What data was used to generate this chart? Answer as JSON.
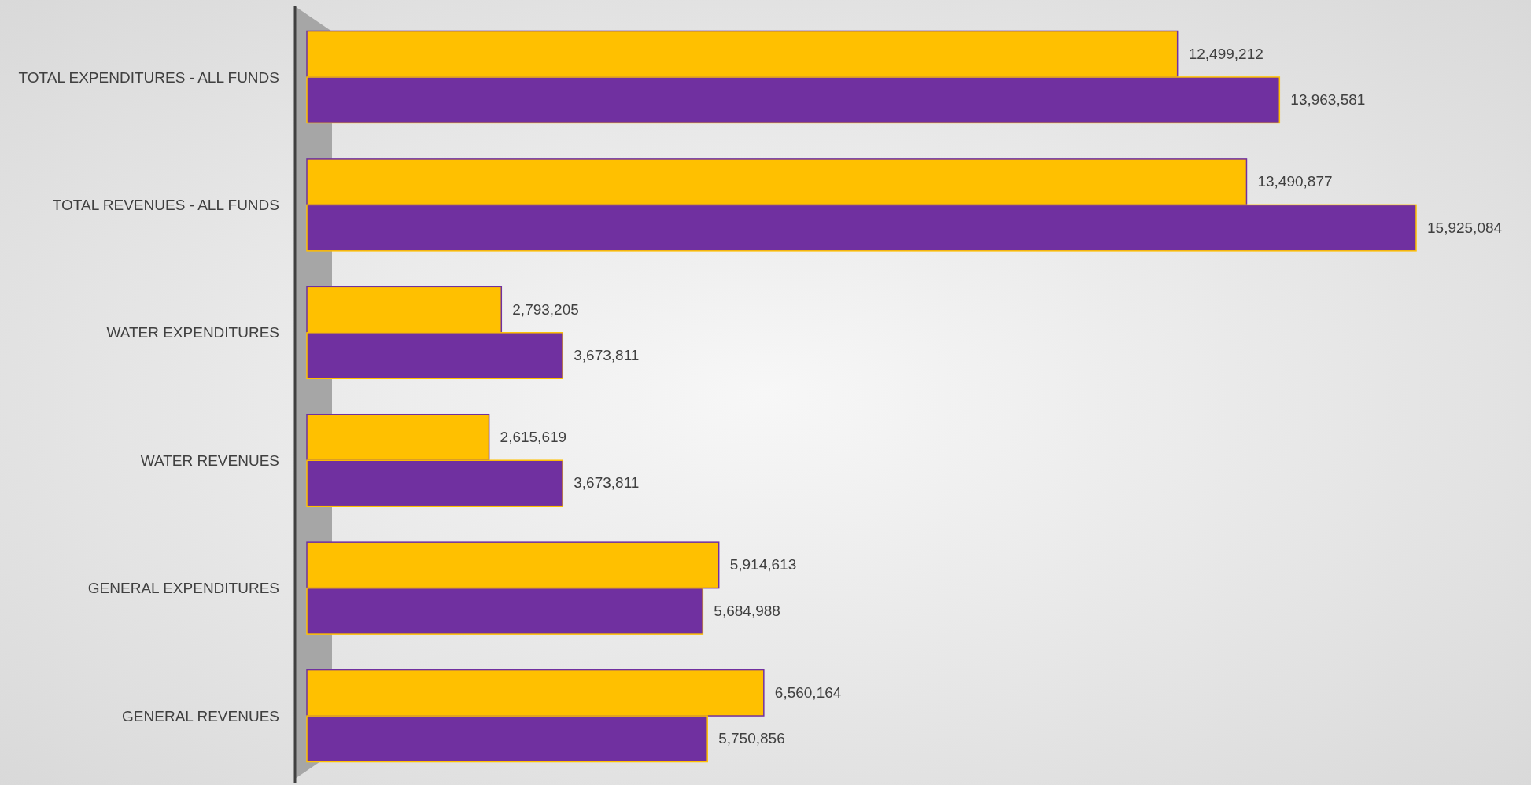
{
  "chart_data": {
    "type": "bar",
    "orientation": "horizontal",
    "legend": false,
    "grid": false,
    "categories": [
      "TOTAL EXPENDITURES - ALL FUNDS",
      "TOTAL REVENUES - ALL FUNDS",
      "WATER EXPENDITURES",
      "WATER REVENUES",
      "GENERAL EXPENDITURES",
      "GENERAL REVENUES"
    ],
    "series": [
      {
        "color": "#ffc000",
        "values": [
          12499212,
          13490877,
          2793205,
          2615619,
          5914613,
          6560164
        ],
        "value_labels": [
          "12,499,212",
          "13,490,877",
          "2,793,205",
          "2,615,619",
          "5,914,613",
          "6,560,164"
        ]
      },
      {
        "color": "#7030a0",
        "values": [
          13963581,
          15925084,
          3673811,
          3673811,
          5684988,
          5750856
        ],
        "value_labels": [
          "13,963,581",
          "15,925,084",
          "3,673,811",
          "3,673,811",
          "5,684,988",
          "5,750,856"
        ]
      }
    ]
  }
}
